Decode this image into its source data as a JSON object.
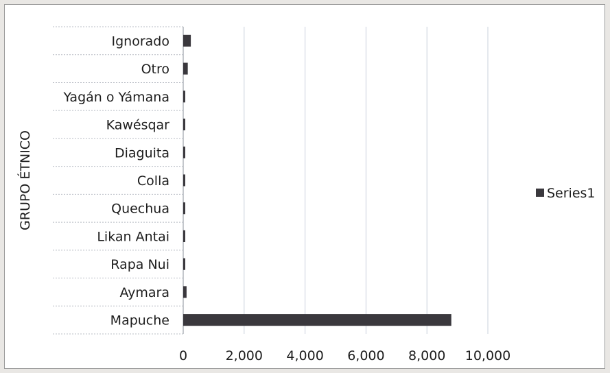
{
  "chart_data": {
    "type": "bar",
    "orientation": "horizontal",
    "categories": [
      "Mapuche",
      "Aymara",
      "Rapa Nui",
      "Likan Antai",
      "Quechua",
      "Colla",
      "Diaguita",
      "Kawésqar",
      "Yagán o Yámana",
      "Otro",
      "Ignorado"
    ],
    "series": [
      {
        "name": "Series1",
        "values": [
          8800,
          110,
          10,
          20,
          40,
          20,
          20,
          20,
          20,
          150,
          250
        ]
      }
    ],
    "xlim": [
      0,
      10000
    ],
    "xticks": [
      0,
      2000,
      4000,
      6000,
      8000,
      10000
    ],
    "xtick_labels": [
      "0",
      "2,000",
      "4,000",
      "6,000",
      "8,000",
      "10,000"
    ],
    "ylabel": "GRUPO ÉTNICO",
    "xlabel": "",
    "title": "",
    "legend": {
      "position": "right",
      "entries": [
        "Series1"
      ]
    },
    "grid": {
      "vertical": true
    },
    "colors": {
      "bar": "#3a383d",
      "grid": "#c9d0dc",
      "axis": "#8a8f99"
    }
  }
}
